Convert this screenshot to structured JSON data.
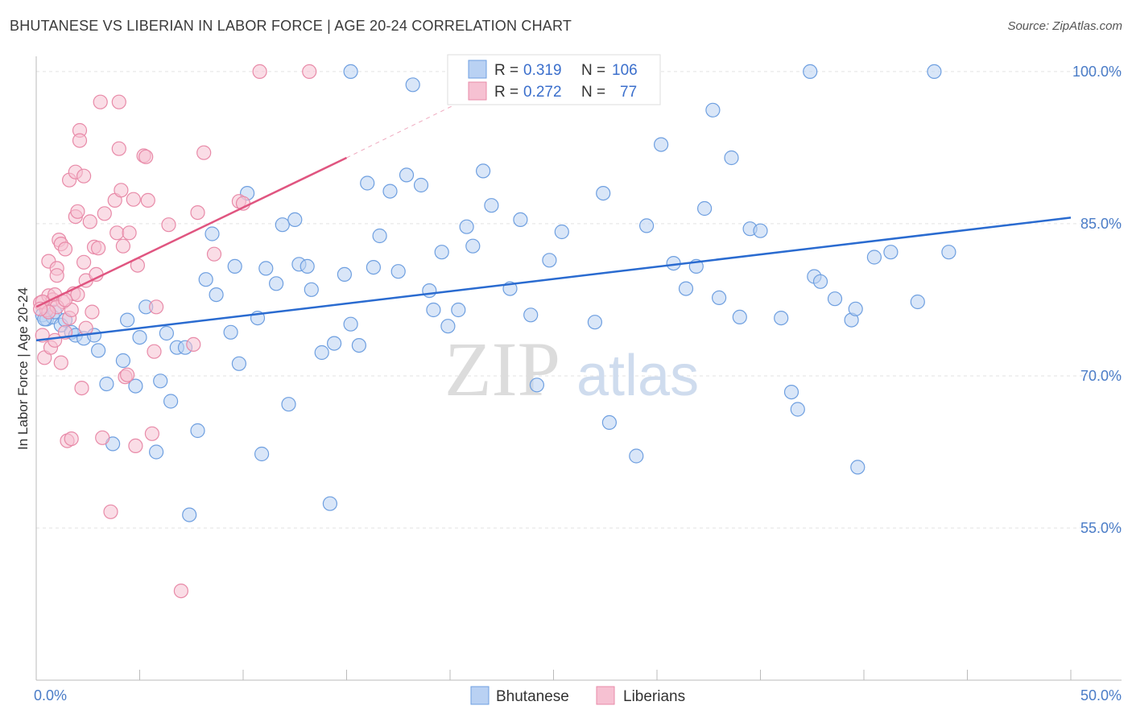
{
  "header": {
    "title": "BHUTANESE VS LIBERIAN IN LABOR FORCE | AGE 20-24 CORRELATION CHART",
    "source": "Source: ZipAtlas.com"
  },
  "chart_data": {
    "type": "scatter",
    "title": "BHUTANESE VS LIBERIAN IN LABOR FORCE | AGE 20-24 CORRELATION CHART",
    "ylabel": "In Labor Force | Age 20-24",
    "xlabel": "",
    "xlim": [
      0,
      50
    ],
    "ylim": [
      40,
      101.5
    ],
    "x_ticks": [
      {
        "v": 0,
        "label": "0.0%"
      },
      {
        "v": 50,
        "label": "50.0%"
      }
    ],
    "y_ticks": [
      {
        "v": 100,
        "label": "100.0%"
      },
      {
        "v": 85,
        "label": "85.0%"
      },
      {
        "v": 70,
        "label": "70.0%"
      },
      {
        "v": 55,
        "label": "55.0%"
      }
    ],
    "grid": true,
    "legend_position": "bottom-center",
    "watermark": {
      "zip": "ZIP",
      "atlas": "atlas"
    },
    "stats": [
      {
        "r_label": "R =",
        "r": "0.319",
        "n_label": "N =",
        "n": "106"
      },
      {
        "r_label": "R =",
        "r": "0.272",
        "n_label": "N =",
        "n": "77"
      }
    ],
    "series": [
      {
        "name": "Bhutanese",
        "color": "#6e9fe0",
        "fill": "#b9d1f3",
        "line_color": "#2a6bd0",
        "trend": {
          "x0": 0,
          "y0": 73.5,
          "x1": 50,
          "y1": 85.6
        },
        "points": [
          [
            0.3,
            76.0
          ],
          [
            0.5,
            75.6
          ],
          [
            0.8,
            75.8
          ],
          [
            0.9,
            76.3
          ],
          [
            1.2,
            75.0
          ],
          [
            1.4,
            75.5
          ],
          [
            1.7,
            74.3
          ],
          [
            1.9,
            74.0
          ],
          [
            2.3,
            73.7
          ],
          [
            2.8,
            74.0
          ],
          [
            3.0,
            72.5
          ],
          [
            3.4,
            69.2
          ],
          [
            3.7,
            63.3
          ],
          [
            4.2,
            71.5
          ],
          [
            4.4,
            75.5
          ],
          [
            4.8,
            69.0
          ],
          [
            5.0,
            73.8
          ],
          [
            5.3,
            76.8
          ],
          [
            5.8,
            62.5
          ],
          [
            6.0,
            69.5
          ],
          [
            6.3,
            74.2
          ],
          [
            6.5,
            67.5
          ],
          [
            6.8,
            72.8
          ],
          [
            7.2,
            72.8
          ],
          [
            7.4,
            56.3
          ],
          [
            7.8,
            64.6
          ],
          [
            8.2,
            79.5
          ],
          [
            8.5,
            84.0
          ],
          [
            8.7,
            78.0
          ],
          [
            9.4,
            74.3
          ],
          [
            9.6,
            80.8
          ],
          [
            9.8,
            71.2
          ],
          [
            10.2,
            88.0
          ],
          [
            10.7,
            75.7
          ],
          [
            10.9,
            62.3
          ],
          [
            11.1,
            80.6
          ],
          [
            11.6,
            79.1
          ],
          [
            11.9,
            84.9
          ],
          [
            12.2,
            67.2
          ],
          [
            12.5,
            85.4
          ],
          [
            12.7,
            81.0
          ],
          [
            13.1,
            80.8
          ],
          [
            13.3,
            78.5
          ],
          [
            13.8,
            72.3
          ],
          [
            14.2,
            57.4
          ],
          [
            14.4,
            73.2
          ],
          [
            14.9,
            80.0
          ],
          [
            15.2,
            75.1
          ],
          [
            15.6,
            73.0
          ],
          [
            16.0,
            89.0
          ],
          [
            16.3,
            80.7
          ],
          [
            16.6,
            83.8
          ],
          [
            17.1,
            88.2
          ],
          [
            17.5,
            80.3
          ],
          [
            17.9,
            89.8
          ],
          [
            18.2,
            98.7
          ],
          [
            18.6,
            88.8
          ],
          [
            19.0,
            78.4
          ],
          [
            19.2,
            76.5
          ],
          [
            19.6,
            82.2
          ],
          [
            19.9,
            74.9
          ],
          [
            20.4,
            76.5
          ],
          [
            20.8,
            84.7
          ],
          [
            21.1,
            82.8
          ],
          [
            21.6,
            90.2
          ],
          [
            22.0,
            86.8
          ],
          [
            22.9,
            78.6
          ],
          [
            23.4,
            85.4
          ],
          [
            23.9,
            76.0
          ],
          [
            24.2,
            69.1
          ],
          [
            24.8,
            81.4
          ],
          [
            25.4,
            84.2
          ],
          [
            27.0,
            75.3
          ],
          [
            27.4,
            88.0
          ],
          [
            27.7,
            65.4
          ],
          [
            29.0,
            62.1
          ],
          [
            29.5,
            84.8
          ],
          [
            30.2,
            92.8
          ],
          [
            30.8,
            81.1
          ],
          [
            31.4,
            78.6
          ],
          [
            31.9,
            80.8
          ],
          [
            32.3,
            86.5
          ],
          [
            32.7,
            96.2
          ],
          [
            33.0,
            77.7
          ],
          [
            33.6,
            91.5
          ],
          [
            34.0,
            75.8
          ],
          [
            34.5,
            84.5
          ],
          [
            35.0,
            84.3
          ],
          [
            36.0,
            75.7
          ],
          [
            36.5,
            68.4
          ],
          [
            36.8,
            66.7
          ],
          [
            37.6,
            79.8
          ],
          [
            37.9,
            79.3
          ],
          [
            38.6,
            77.6
          ],
          [
            39.4,
            75.5
          ],
          [
            39.6,
            76.6
          ],
          [
            39.7,
            61.0
          ],
          [
            40.5,
            81.7
          ],
          [
            41.3,
            82.2
          ],
          [
            42.6,
            77.3
          ],
          [
            44.1,
            82.2
          ],
          [
            15.2,
            100.0
          ],
          [
            24.3,
            100.0
          ],
          [
            37.4,
            100.0
          ],
          [
            43.4,
            100.0
          ],
          [
            0.4,
            75.6
          ]
        ]
      },
      {
        "name": "Liberians",
        "color": "#e88aa8",
        "fill": "#f6c1d2",
        "line_color": "#e05580",
        "trend": {
          "x0": 0,
          "y0": 76.8,
          "x1": 15,
          "y1": 91.5
        },
        "trend_ext": {
          "x0": 15,
          "y0": 91.5,
          "x1": 20.5,
          "y1": 97.0
        },
        "points": [
          [
            0.2,
            77.2
          ],
          [
            0.3,
            74.0
          ],
          [
            0.4,
            71.8
          ],
          [
            0.5,
            76.5
          ],
          [
            0.6,
            77.9
          ],
          [
            0.6,
            81.3
          ],
          [
            0.7,
            72.8
          ],
          [
            0.8,
            77.5
          ],
          [
            0.9,
            78.0
          ],
          [
            0.9,
            73.5
          ],
          [
            1.0,
            80.6
          ],
          [
            1.0,
            79.9
          ],
          [
            1.1,
            83.4
          ],
          [
            1.2,
            83.0
          ],
          [
            1.2,
            71.3
          ],
          [
            1.3,
            77.3
          ],
          [
            1.4,
            74.3
          ],
          [
            1.4,
            82.5
          ],
          [
            1.5,
            63.6
          ],
          [
            1.6,
            75.7
          ],
          [
            1.6,
            89.3
          ],
          [
            1.7,
            63.8
          ],
          [
            1.7,
            76.5
          ],
          [
            1.8,
            78.1
          ],
          [
            1.9,
            85.7
          ],
          [
            1.9,
            90.1
          ],
          [
            2.0,
            78.0
          ],
          [
            2.0,
            86.2
          ],
          [
            2.1,
            94.2
          ],
          [
            2.1,
            93.2
          ],
          [
            2.2,
            68.8
          ],
          [
            2.3,
            89.7
          ],
          [
            2.3,
            81.2
          ],
          [
            2.4,
            74.7
          ],
          [
            2.4,
            79.4
          ],
          [
            2.6,
            85.2
          ],
          [
            2.7,
            76.3
          ],
          [
            2.8,
            82.7
          ],
          [
            2.9,
            80.0
          ],
          [
            3.0,
            82.6
          ],
          [
            3.1,
            97.0
          ],
          [
            3.2,
            63.9
          ],
          [
            3.3,
            86.0
          ],
          [
            3.6,
            56.6
          ],
          [
            3.8,
            87.3
          ],
          [
            3.9,
            84.1
          ],
          [
            4.0,
            92.4
          ],
          [
            4.1,
            88.3
          ],
          [
            4.2,
            82.8
          ],
          [
            4.3,
            69.9
          ],
          [
            4.4,
            70.1
          ],
          [
            4.5,
            84.1
          ],
          [
            4.7,
            87.4
          ],
          [
            4.8,
            63.1
          ],
          [
            4.9,
            80.9
          ],
          [
            5.2,
            91.7
          ],
          [
            5.3,
            91.6
          ],
          [
            5.4,
            87.3
          ],
          [
            5.6,
            64.3
          ],
          [
            5.7,
            72.4
          ],
          [
            5.8,
            76.8
          ],
          [
            6.4,
            84.9
          ],
          [
            7.0,
            48.8
          ],
          [
            7.6,
            73.1
          ],
          [
            7.8,
            86.1
          ],
          [
            8.1,
            92.0
          ],
          [
            8.6,
            82.0
          ],
          [
            9.8,
            87.2
          ],
          [
            10.0,
            87.0
          ],
          [
            10.8,
            100.0
          ],
          [
            13.2,
            100.0
          ],
          [
            4.0,
            97.0
          ],
          [
            1.0,
            76.8
          ],
          [
            0.3,
            77.3
          ],
          [
            1.4,
            77.5
          ],
          [
            0.6,
            76.3
          ],
          [
            0.2,
            76.6
          ]
        ]
      }
    ]
  }
}
